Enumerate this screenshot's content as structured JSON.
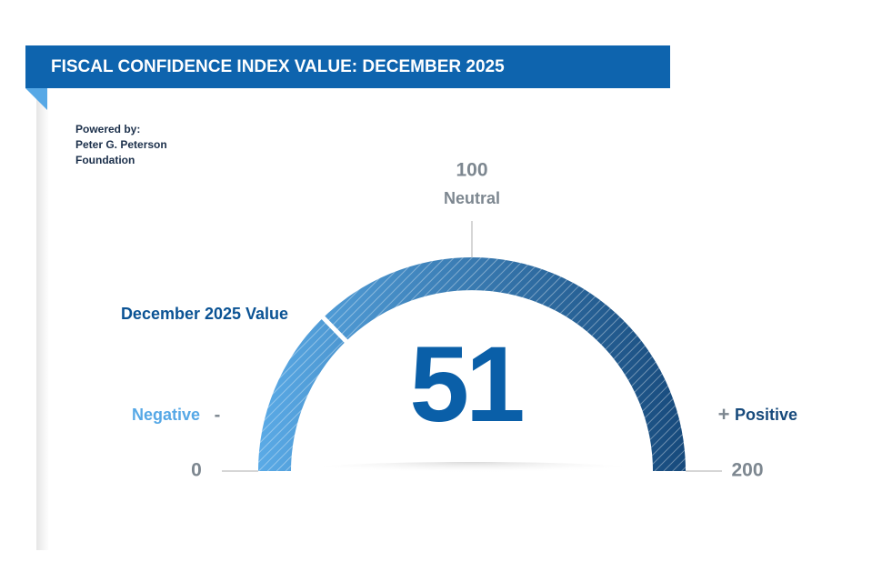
{
  "chart_data": {
    "type": "gauge",
    "title": "FISCAL CONFIDENCE INDEX VALUE: DECEMBER 2025",
    "source": [
      "Powered by:",
      "Peter G. Peterson Foundation"
    ],
    "value": 51,
    "value_caption": "December 2025 Value",
    "xlim": [
      0,
      200
    ],
    "xticks": [
      0,
      100,
      200
    ],
    "center_label": "Neutral",
    "negative_label": "Negative",
    "negative_sign": "-",
    "positive_sign": "+",
    "positive_label": "Positive",
    "colors": [
      "#5aaae6",
      "#174a7c"
    ]
  }
}
